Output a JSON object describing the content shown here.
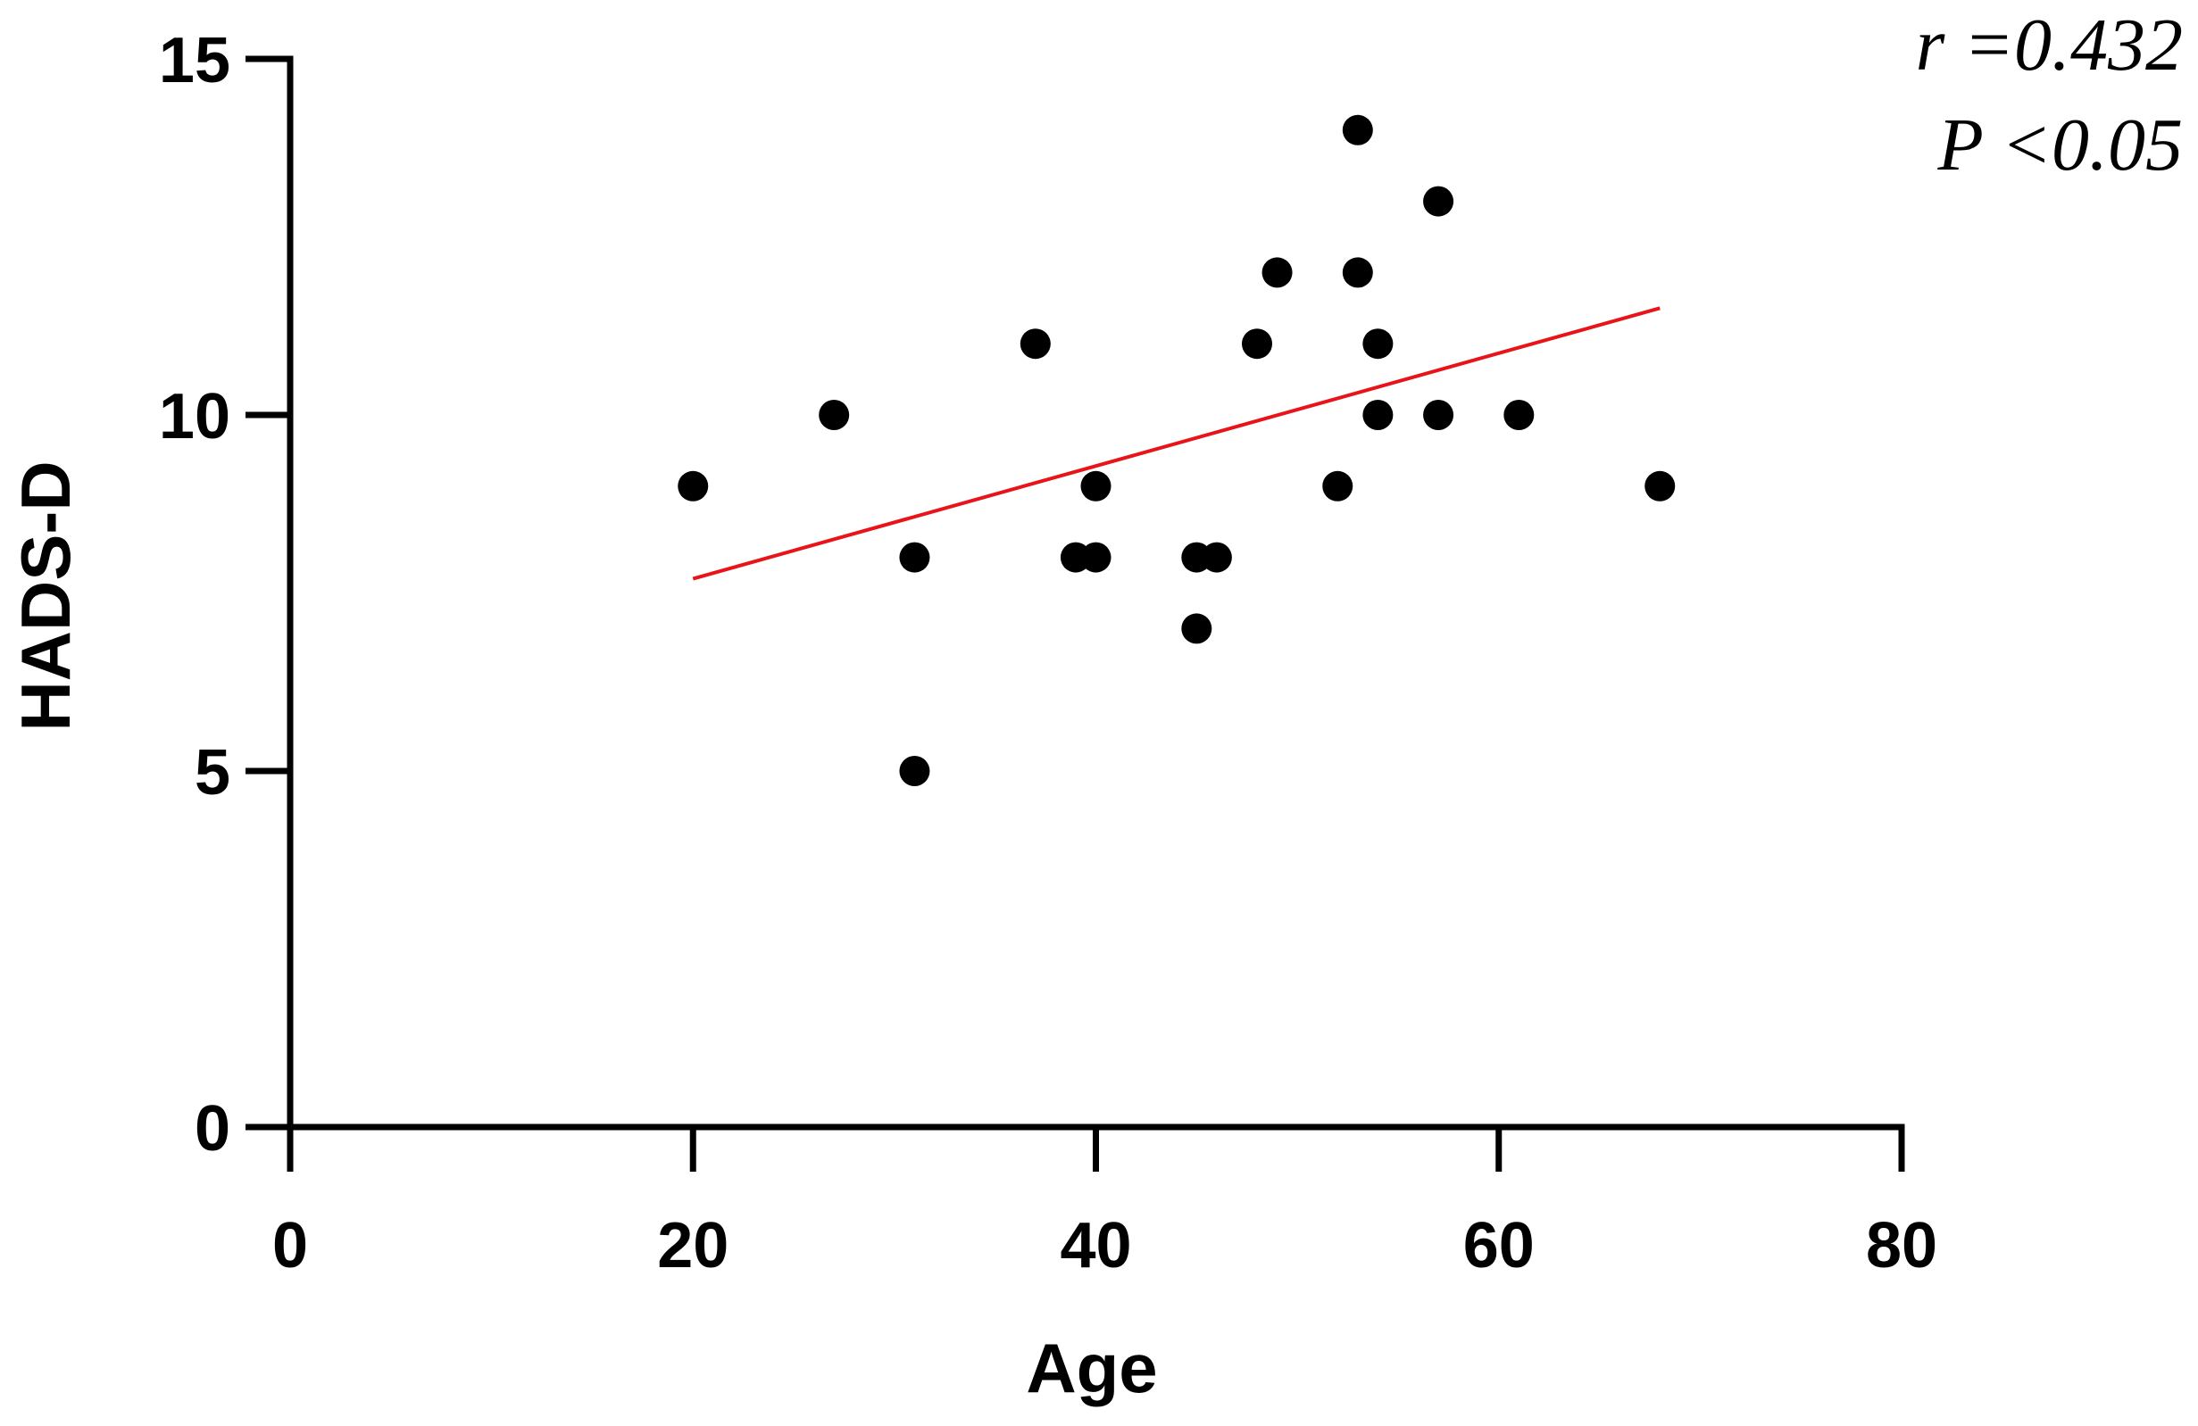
{
  "chart_data": {
    "type": "scatter",
    "xlabel": "Age",
    "ylabel": "HADS-D",
    "xlim": [
      0,
      80
    ],
    "ylim": [
      0,
      15
    ],
    "x_ticks": [
      0,
      20,
      40,
      60,
      80
    ],
    "y_ticks": [
      0,
      5,
      10,
      15
    ],
    "x_tick_labels": [
      "0",
      "20",
      "40",
      "60",
      "80"
    ],
    "y_tick_labels": [
      "0",
      "5",
      "10",
      "15"
    ],
    "grid": false,
    "series": [
      {
        "points": [
          {
            "x": 20,
            "y": 9
          },
          {
            "x": 27,
            "y": 10
          },
          {
            "x": 31,
            "y": 8
          },
          {
            "x": 31,
            "y": 5
          },
          {
            "x": 37,
            "y": 11
          },
          {
            "x": 39,
            "y": 8
          },
          {
            "x": 40,
            "y": 8
          },
          {
            "x": 40,
            "y": 9
          },
          {
            "x": 45,
            "y": 8
          },
          {
            "x": 45,
            "y": 7
          },
          {
            "x": 46,
            "y": 8
          },
          {
            "x": 48,
            "y": 11
          },
          {
            "x": 49,
            "y": 12
          },
          {
            "x": 52,
            "y": 9
          },
          {
            "x": 53,
            "y": 14
          },
          {
            "x": 53,
            "y": 12
          },
          {
            "x": 54,
            "y": 11
          },
          {
            "x": 54,
            "y": 10
          },
          {
            "x": 57,
            "y": 13
          },
          {
            "x": 57,
            "y": 10
          },
          {
            "x": 61,
            "y": 10
          },
          {
            "x": 68,
            "y": 9
          }
        ],
        "color": "#000000"
      }
    ],
    "regression_line": {
      "x": [
        20,
        68
      ],
      "y": [
        7.7,
        11.5
      ],
      "color": "#e8141a"
    },
    "annotations": {
      "r_text": "r =0.432",
      "p_text": "P <0.05"
    }
  }
}
